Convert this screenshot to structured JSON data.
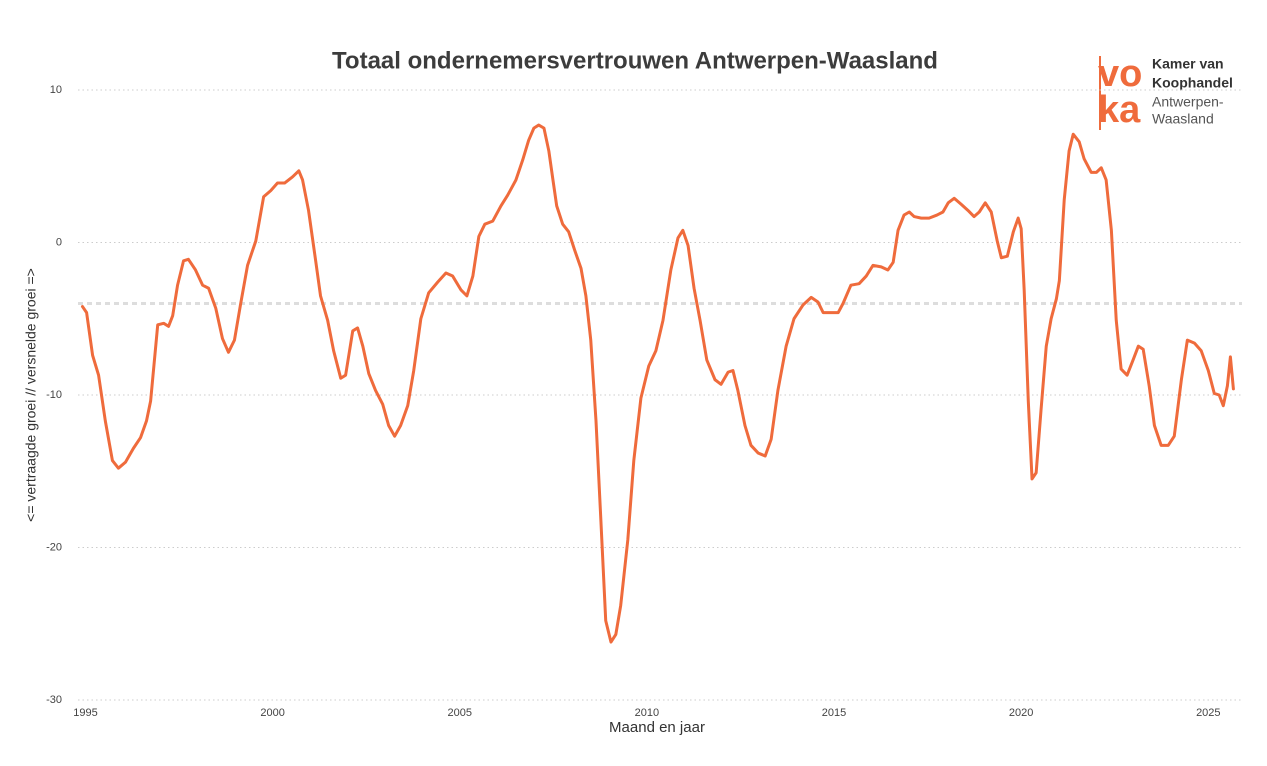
{
  "chart_data": {
    "type": "line",
    "title": "Totaal ondernemersvertrouwen Antwerpen-Waasland",
    "x_label": "Maand en jaar",
    "y_label": "<= vertraagde groei // versnelde groei =>",
    "logo": {
      "mark_top": "vo",
      "mark_bottom": "ka",
      "lines": [
        "Kamer van",
        "Koophandel",
        "Antwerpen-",
        "Waasland"
      ]
    },
    "xlim": [
      1994.8,
      2025.9
    ],
    "ylim": [
      -30,
      10
    ],
    "xticks": [
      1995,
      2000,
      2005,
      2010,
      2015,
      2020,
      2025
    ],
    "yticks": [
      -30,
      -20,
      -10,
      0,
      10
    ],
    "grid": true,
    "reference_line": -4,
    "series": [
      {
        "name": "Totaal ondernemersvertrouwen",
        "color": "#ef6b3c",
        "x": [
          1994.92,
          1995.03,
          1995.19,
          1995.35,
          1995.53,
          1995.72,
          1995.88,
          1996.07,
          1996.28,
          1996.47,
          1996.63,
          1996.74,
          1996.93,
          1997.09,
          1997.22,
          1997.33,
          1997.46,
          1997.62,
          1997.75,
          1997.94,
          1998.13,
          1998.29,
          1998.48,
          1998.66,
          1998.82,
          1998.98,
          1999.14,
          1999.33,
          1999.55,
          1999.76,
          1999.95,
          2000.13,
          2000.32,
          2000.53,
          2000.7,
          2000.8,
          2000.96,
          2001.15,
          2001.28,
          2001.47,
          2001.63,
          2001.82,
          2001.95,
          2002.14,
          2002.27,
          2002.41,
          2002.57,
          2002.75,
          2002.94,
          2003.1,
          2003.26,
          2003.42,
          2003.61,
          2003.77,
          2003.96,
          2004.17,
          2004.41,
          2004.63,
          2004.81,
          2005.03,
          2005.19,
          2005.35,
          2005.51,
          2005.67,
          2005.88,
          2006.1,
          2006.28,
          2006.5,
          2006.68,
          2006.84,
          2006.98,
          2007.11,
          2007.25,
          2007.38,
          2007.49,
          2007.59,
          2007.75,
          2007.91,
          2008.07,
          2008.24,
          2008.37,
          2008.5,
          2008.64,
          2008.77,
          2008.9,
          2009.04,
          2009.17,
          2009.3,
          2009.49,
          2009.65,
          2009.84,
          2010.05,
          2010.24,
          2010.43,
          2010.64,
          2010.83,
          2010.96,
          2011.1,
          2011.26,
          2011.42,
          2011.6,
          2011.82,
          2011.98,
          2012.17,
          2012.3,
          2012.43,
          2012.62,
          2012.78,
          2012.97,
          2013.16,
          2013.32,
          2013.5,
          2013.72,
          2013.93,
          2014.17,
          2014.39,
          2014.57,
          2014.71,
          2014.92,
          2015.11,
          2015.24,
          2015.45,
          2015.67,
          2015.86,
          2016.04,
          2016.26,
          2016.44,
          2016.58,
          2016.71,
          2016.87,
          2017.01,
          2017.14,
          2017.33,
          2017.54,
          2017.75,
          2017.91,
          2018.05,
          2018.21,
          2018.4,
          2018.58,
          2018.74,
          2018.88,
          2019.04,
          2019.2,
          2019.36,
          2019.47,
          2019.63,
          2019.79,
          2019.92,
          2020.0,
          2020.08,
          2020.19,
          2020.29,
          2020.4,
          2020.53,
          2020.67,
          2020.8,
          2020.94,
          2021.02,
          2021.15,
          2021.28,
          2021.39,
          2021.55,
          2021.68,
          2021.87,
          2022.01,
          2022.14,
          2022.27,
          2022.41,
          2022.54,
          2022.67,
          2022.83,
          2022.99,
          2023.13,
          2023.26,
          2023.42,
          2023.56,
          2023.74,
          2023.93,
          2024.09,
          2024.28,
          2024.44,
          2024.63,
          2024.81,
          2025.0,
          2025.16,
          2025.29,
          2025.4,
          2025.51,
          2025.59,
          2025.67
        ],
        "values": [
          -4.2,
          -4.6,
          -7.4,
          -8.7,
          -11.7,
          -14.3,
          -14.8,
          -14.4,
          -13.5,
          -12.8,
          -11.7,
          -10.4,
          -5.4,
          -5.3,
          -5.5,
          -4.8,
          -2.8,
          -1.2,
          -1.1,
          -1.8,
          -2.8,
          -3.0,
          -4.3,
          -6.3,
          -7.2,
          -6.4,
          -4.1,
          -1.5,
          0.1,
          3.0,
          3.4,
          3.9,
          3.9,
          4.3,
          4.7,
          4.1,
          2.1,
          -1.2,
          -3.5,
          -5.1,
          -7.1,
          -8.9,
          -8.7,
          -5.8,
          -5.6,
          -6.8,
          -8.6,
          -9.7,
          -10.6,
          -12.0,
          -12.7,
          -12.0,
          -10.7,
          -8.4,
          -5.0,
          -3.3,
          -2.6,
          -2.0,
          -2.2,
          -3.1,
          -3.5,
          -2.2,
          0.4,
          1.2,
          1.4,
          2.4,
          3.1,
          4.1,
          5.4,
          6.7,
          7.5,
          7.7,
          7.5,
          6.0,
          4.1,
          2.4,
          1.2,
          0.7,
          -0.5,
          -1.7,
          -3.5,
          -6.4,
          -11.7,
          -18.2,
          -24.8,
          -26.2,
          -25.7,
          -23.8,
          -19.5,
          -14.3,
          -10.2,
          -8.1,
          -7.1,
          -5.1,
          -1.8,
          0.3,
          0.8,
          -0.2,
          -3.0,
          -5.1,
          -7.7,
          -9.0,
          -9.3,
          -8.5,
          -8.4,
          -9.7,
          -12.0,
          -13.3,
          -13.8,
          -14.0,
          -12.9,
          -9.7,
          -6.8,
          -5.0,
          -4.1,
          -3.6,
          -3.9,
          -4.6,
          -4.6,
          -4.6,
          -4.0,
          -2.8,
          -2.7,
          -2.2,
          -1.5,
          -1.6,
          -1.8,
          -1.3,
          0.8,
          1.8,
          2.0,
          1.7,
          1.6,
          1.6,
          1.8,
          2.0,
          2.6,
          2.9,
          2.5,
          2.1,
          1.7,
          2.0,
          2.6,
          2.0,
          0.1,
          -1.0,
          -0.9,
          0.7,
          1.6,
          0.9,
          -3.1,
          -10.4,
          -15.5,
          -15.1,
          -11.0,
          -6.8,
          -5.0,
          -3.7,
          -2.5,
          2.8,
          6.0,
          7.1,
          6.6,
          5.5,
          4.6,
          4.6,
          4.9,
          4.1,
          0.8,
          -5.1,
          -8.3,
          -8.7,
          -7.7,
          -6.8,
          -7.0,
          -9.4,
          -12.0,
          -13.3,
          -13.3,
          -12.7,
          -9.0,
          -6.4,
          -6.6,
          -7.1,
          -8.4,
          -9.9,
          -10.0,
          -10.7,
          -9.4,
          -7.5,
          -9.6
        ]
      }
    ]
  }
}
